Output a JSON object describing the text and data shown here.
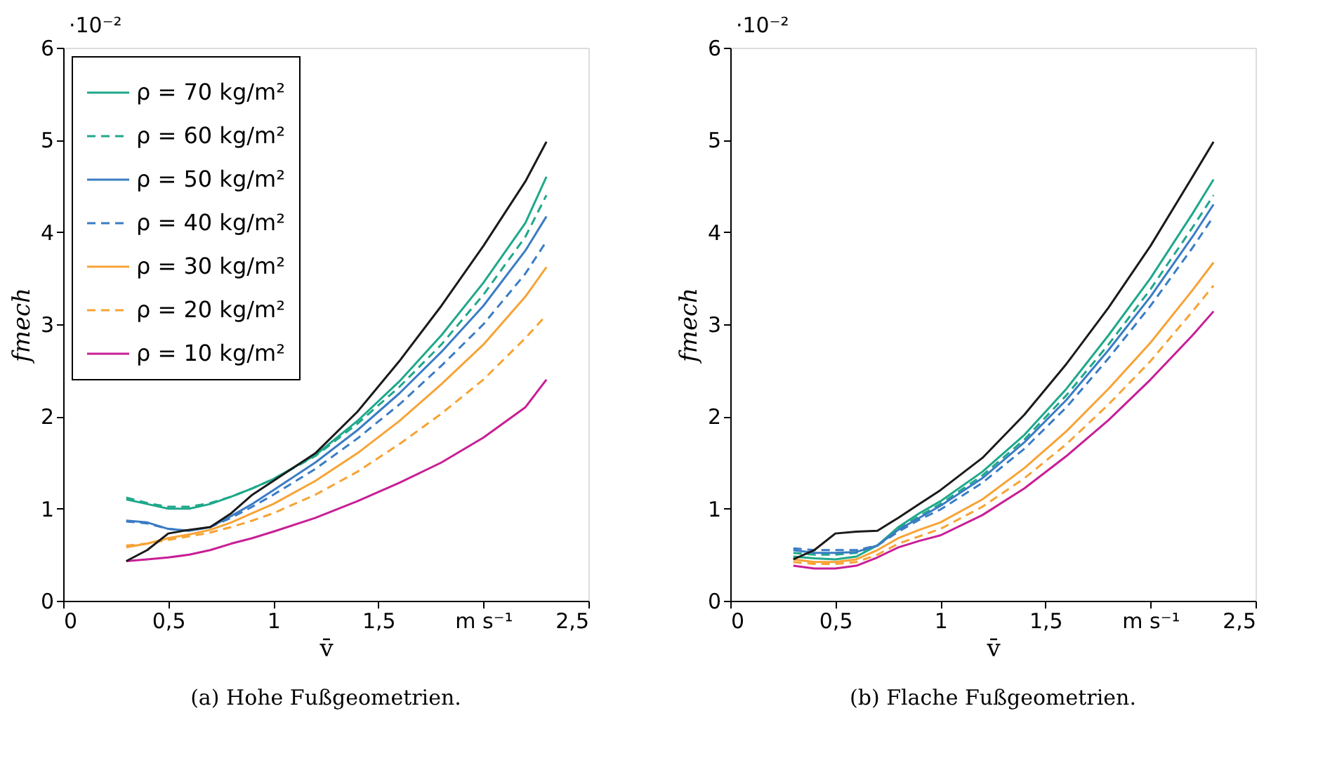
{
  "chart_data": [
    {
      "type": "line",
      "title": "(a) Hohe Fußgeometrien.",
      "xlabel": "v̄",
      "ylabel": "fmech",
      "annotations": [
        "·10⁻²"
      ],
      "xlim": [
        0,
        2.5
      ],
      "ylim": [
        0,
        6
      ],
      "xticks": [
        {
          "value": 0,
          "label": "0"
        },
        {
          "value": 0.5,
          "label": "0,5"
        },
        1,
        {
          "value": 1.5,
          "label": "1,5"
        },
        {
          "value": 2,
          "label": "m s⁻¹"
        },
        {
          "value": 2.5,
          "label": "2,5"
        }
      ],
      "yticks": [
        {
          "value": 0,
          "label": "0"
        },
        1,
        2,
        3,
        4,
        5,
        6
      ],
      "grid": false,
      "legend": "top left",
      "line_style": "solid",
      "marker": "none",
      "x": [
        0.3,
        0.4,
        0.5,
        0.6,
        0.7,
        0.8,
        0.9,
        1.0,
        1.2,
        1.4,
        1.6,
        1.8,
        2.0,
        2.2,
        2.3
      ],
      "series": [
        {
          "name": "ρ = 70 kg/m²",
          "color": "#1fa88a",
          "values": [
            1.1,
            1.05,
            1.0,
            1.0,
            1.05,
            1.13,
            1.22,
            1.32,
            1.58,
            1.95,
            2.38,
            2.88,
            3.45,
            4.1,
            4.6
          ]
        },
        {
          "name": "ρ = 60 kg/m²",
          "color": "#1fa88a",
          "line_style": "dashed",
          "values": [
            1.12,
            1.06,
            1.02,
            1.02,
            1.06,
            1.13,
            1.22,
            1.32,
            1.57,
            1.92,
            2.32,
            2.78,
            3.32,
            3.95,
            4.4
          ]
        },
        {
          "name": "ρ = 50 kg/m²",
          "color": "#3a7cc4",
          "values": [
            0.87,
            0.85,
            0.78,
            0.76,
            0.8,
            0.92,
            1.05,
            1.2,
            1.5,
            1.85,
            2.25,
            2.7,
            3.2,
            3.8,
            4.17
          ]
        },
        {
          "name": "ρ = 40 kg/m²",
          "color": "#3a7cc4",
          "line_style": "dashed",
          "values": [
            0.86,
            0.84,
            0.78,
            0.76,
            0.8,
            0.9,
            1.02,
            1.15,
            1.43,
            1.76,
            2.13,
            2.55,
            3.0,
            3.55,
            3.9
          ]
        },
        {
          "name": "ρ = 30 kg/m²",
          "color": "#f7a335",
          "values": [
            0.58,
            0.62,
            0.68,
            0.72,
            0.77,
            0.85,
            0.95,
            1.05,
            1.3,
            1.6,
            1.95,
            2.35,
            2.78,
            3.3,
            3.62
          ]
        },
        {
          "name": "ρ = 20 kg/m²",
          "color": "#f7a335",
          "line_style": "dashed",
          "values": [
            0.6,
            0.62,
            0.66,
            0.7,
            0.74,
            0.8,
            0.87,
            0.95,
            1.15,
            1.4,
            1.7,
            2.03,
            2.4,
            2.85,
            3.1
          ]
        },
        {
          "name": "ρ = 10 kg/m²",
          "color": "#c81e96",
          "values": [
            0.43,
            0.45,
            0.47,
            0.5,
            0.55,
            0.62,
            0.68,
            0.75,
            0.9,
            1.08,
            1.28,
            1.5,
            1.77,
            2.1,
            2.4
          ]
        },
        {
          "color": "#1a1a1a",
          "values": [
            0.43,
            0.55,
            0.73,
            0.77,
            0.8,
            0.95,
            1.15,
            1.3,
            1.6,
            2.05,
            2.6,
            3.2,
            3.85,
            4.55,
            4.98
          ]
        }
      ]
    },
    {
      "type": "line",
      "title": "(b) Flache Fußgeometrien.",
      "xlabel": "v̄",
      "ylabel": "fmech",
      "annotations": [
        "·10⁻²"
      ],
      "xlim": [
        0,
        2.5
      ],
      "ylim": [
        0,
        6
      ],
      "xticks": [
        {
          "value": 0,
          "label": "0"
        },
        {
          "value": 0.5,
          "label": "0,5"
        },
        1,
        {
          "value": 1.5,
          "label": "1,5"
        },
        {
          "value": 2,
          "label": "m s⁻¹"
        },
        {
          "value": 2.5,
          "label": "2,5"
        }
      ],
      "yticks": [
        {
          "value": 0,
          "label": "0"
        },
        1,
        2,
        3,
        4,
        5,
        6
      ],
      "grid": false,
      "legend": "top left",
      "line_style": "solid",
      "marker": "none",
      "x": [
        0.3,
        0.4,
        0.5,
        0.6,
        0.7,
        0.8,
        0.9,
        1.0,
        1.2,
        1.4,
        1.6,
        1.8,
        2.0,
        2.2,
        2.3
      ],
      "series": [
        {
          "name": "ρ = 70 kg/m²",
          "color": "#1fa88a",
          "values": [
            0.48,
            0.46,
            0.45,
            0.48,
            0.6,
            0.8,
            0.95,
            1.08,
            1.4,
            1.8,
            2.3,
            2.88,
            3.5,
            4.2,
            4.57
          ]
        },
        {
          "name": "ρ = 60 kg/m²",
          "color": "#1fa88a",
          "line_style": "dashed",
          "values": [
            0.52,
            0.5,
            0.5,
            0.52,
            0.6,
            0.78,
            0.92,
            1.05,
            1.36,
            1.75,
            2.23,
            2.78,
            3.38,
            4.05,
            4.4
          ]
        },
        {
          "name": "ρ = 50 kg/m²",
          "color": "#3a7cc4",
          "values": [
            0.55,
            0.52,
            0.52,
            0.53,
            0.6,
            0.77,
            0.9,
            1.03,
            1.33,
            1.72,
            2.18,
            2.72,
            3.3,
            3.95,
            4.3
          ]
        },
        {
          "name": "ρ = 40 kg/m²",
          "color": "#3a7cc4",
          "line_style": "dashed",
          "values": [
            0.57,
            0.55,
            0.55,
            0.55,
            0.6,
            0.75,
            0.88,
            0.99,
            1.28,
            1.65,
            2.1,
            2.63,
            3.2,
            3.83,
            4.17
          ]
        },
        {
          "name": "ρ = 30 kg/m²",
          "color": "#f7a335",
          "values": [
            0.45,
            0.42,
            0.42,
            0.45,
            0.55,
            0.68,
            0.77,
            0.85,
            1.1,
            1.44,
            1.84,
            2.3,
            2.8,
            3.37,
            3.67
          ]
        },
        {
          "name": "ρ = 20 kg/m²",
          "color": "#f7a335",
          "line_style": "dashed",
          "values": [
            0.42,
            0.4,
            0.4,
            0.42,
            0.5,
            0.62,
            0.7,
            0.78,
            1.02,
            1.33,
            1.7,
            2.13,
            2.6,
            3.14,
            3.42
          ]
        },
        {
          "name": "ρ = 10 kg/m²",
          "color": "#c81e96",
          "values": [
            0.38,
            0.35,
            0.35,
            0.38,
            0.47,
            0.58,
            0.65,
            0.71,
            0.93,
            1.22,
            1.57,
            1.96,
            2.4,
            2.88,
            3.14
          ]
        },
        {
          "color": "#1a1a1a",
          "values": [
            0.45,
            0.55,
            0.73,
            0.75,
            0.76,
            0.9,
            1.05,
            1.2,
            1.55,
            2.02,
            2.57,
            3.18,
            3.85,
            4.6,
            4.98
          ]
        }
      ]
    }
  ]
}
